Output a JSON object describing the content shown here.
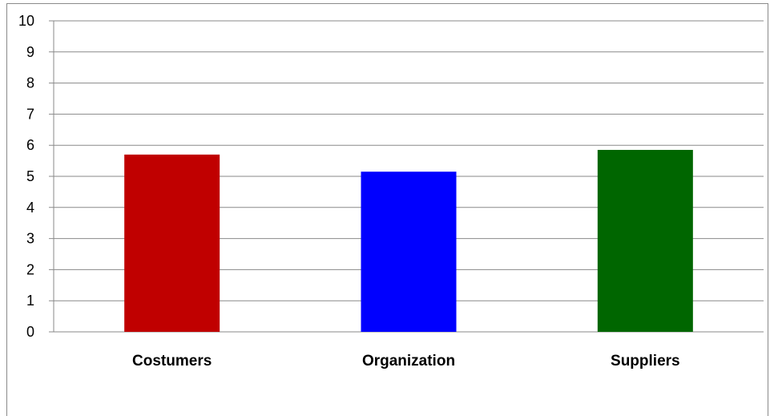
{
  "chart_data": {
    "type": "bar",
    "categories": [
      "Costumers",
      "Organization",
      "Suppliers"
    ],
    "values": [
      5.7,
      5.15,
      5.85
    ],
    "colors": [
      "#c00000",
      "#0000ff",
      "#006600"
    ],
    "ylim": [
      0,
      10
    ],
    "yticks": [
      "0",
      "1",
      "2",
      "3",
      "4",
      "5",
      "6",
      "7",
      "8",
      "9",
      "10"
    ],
    "grid": true,
    "title": "",
    "xlabel": "",
    "ylabel": ""
  }
}
